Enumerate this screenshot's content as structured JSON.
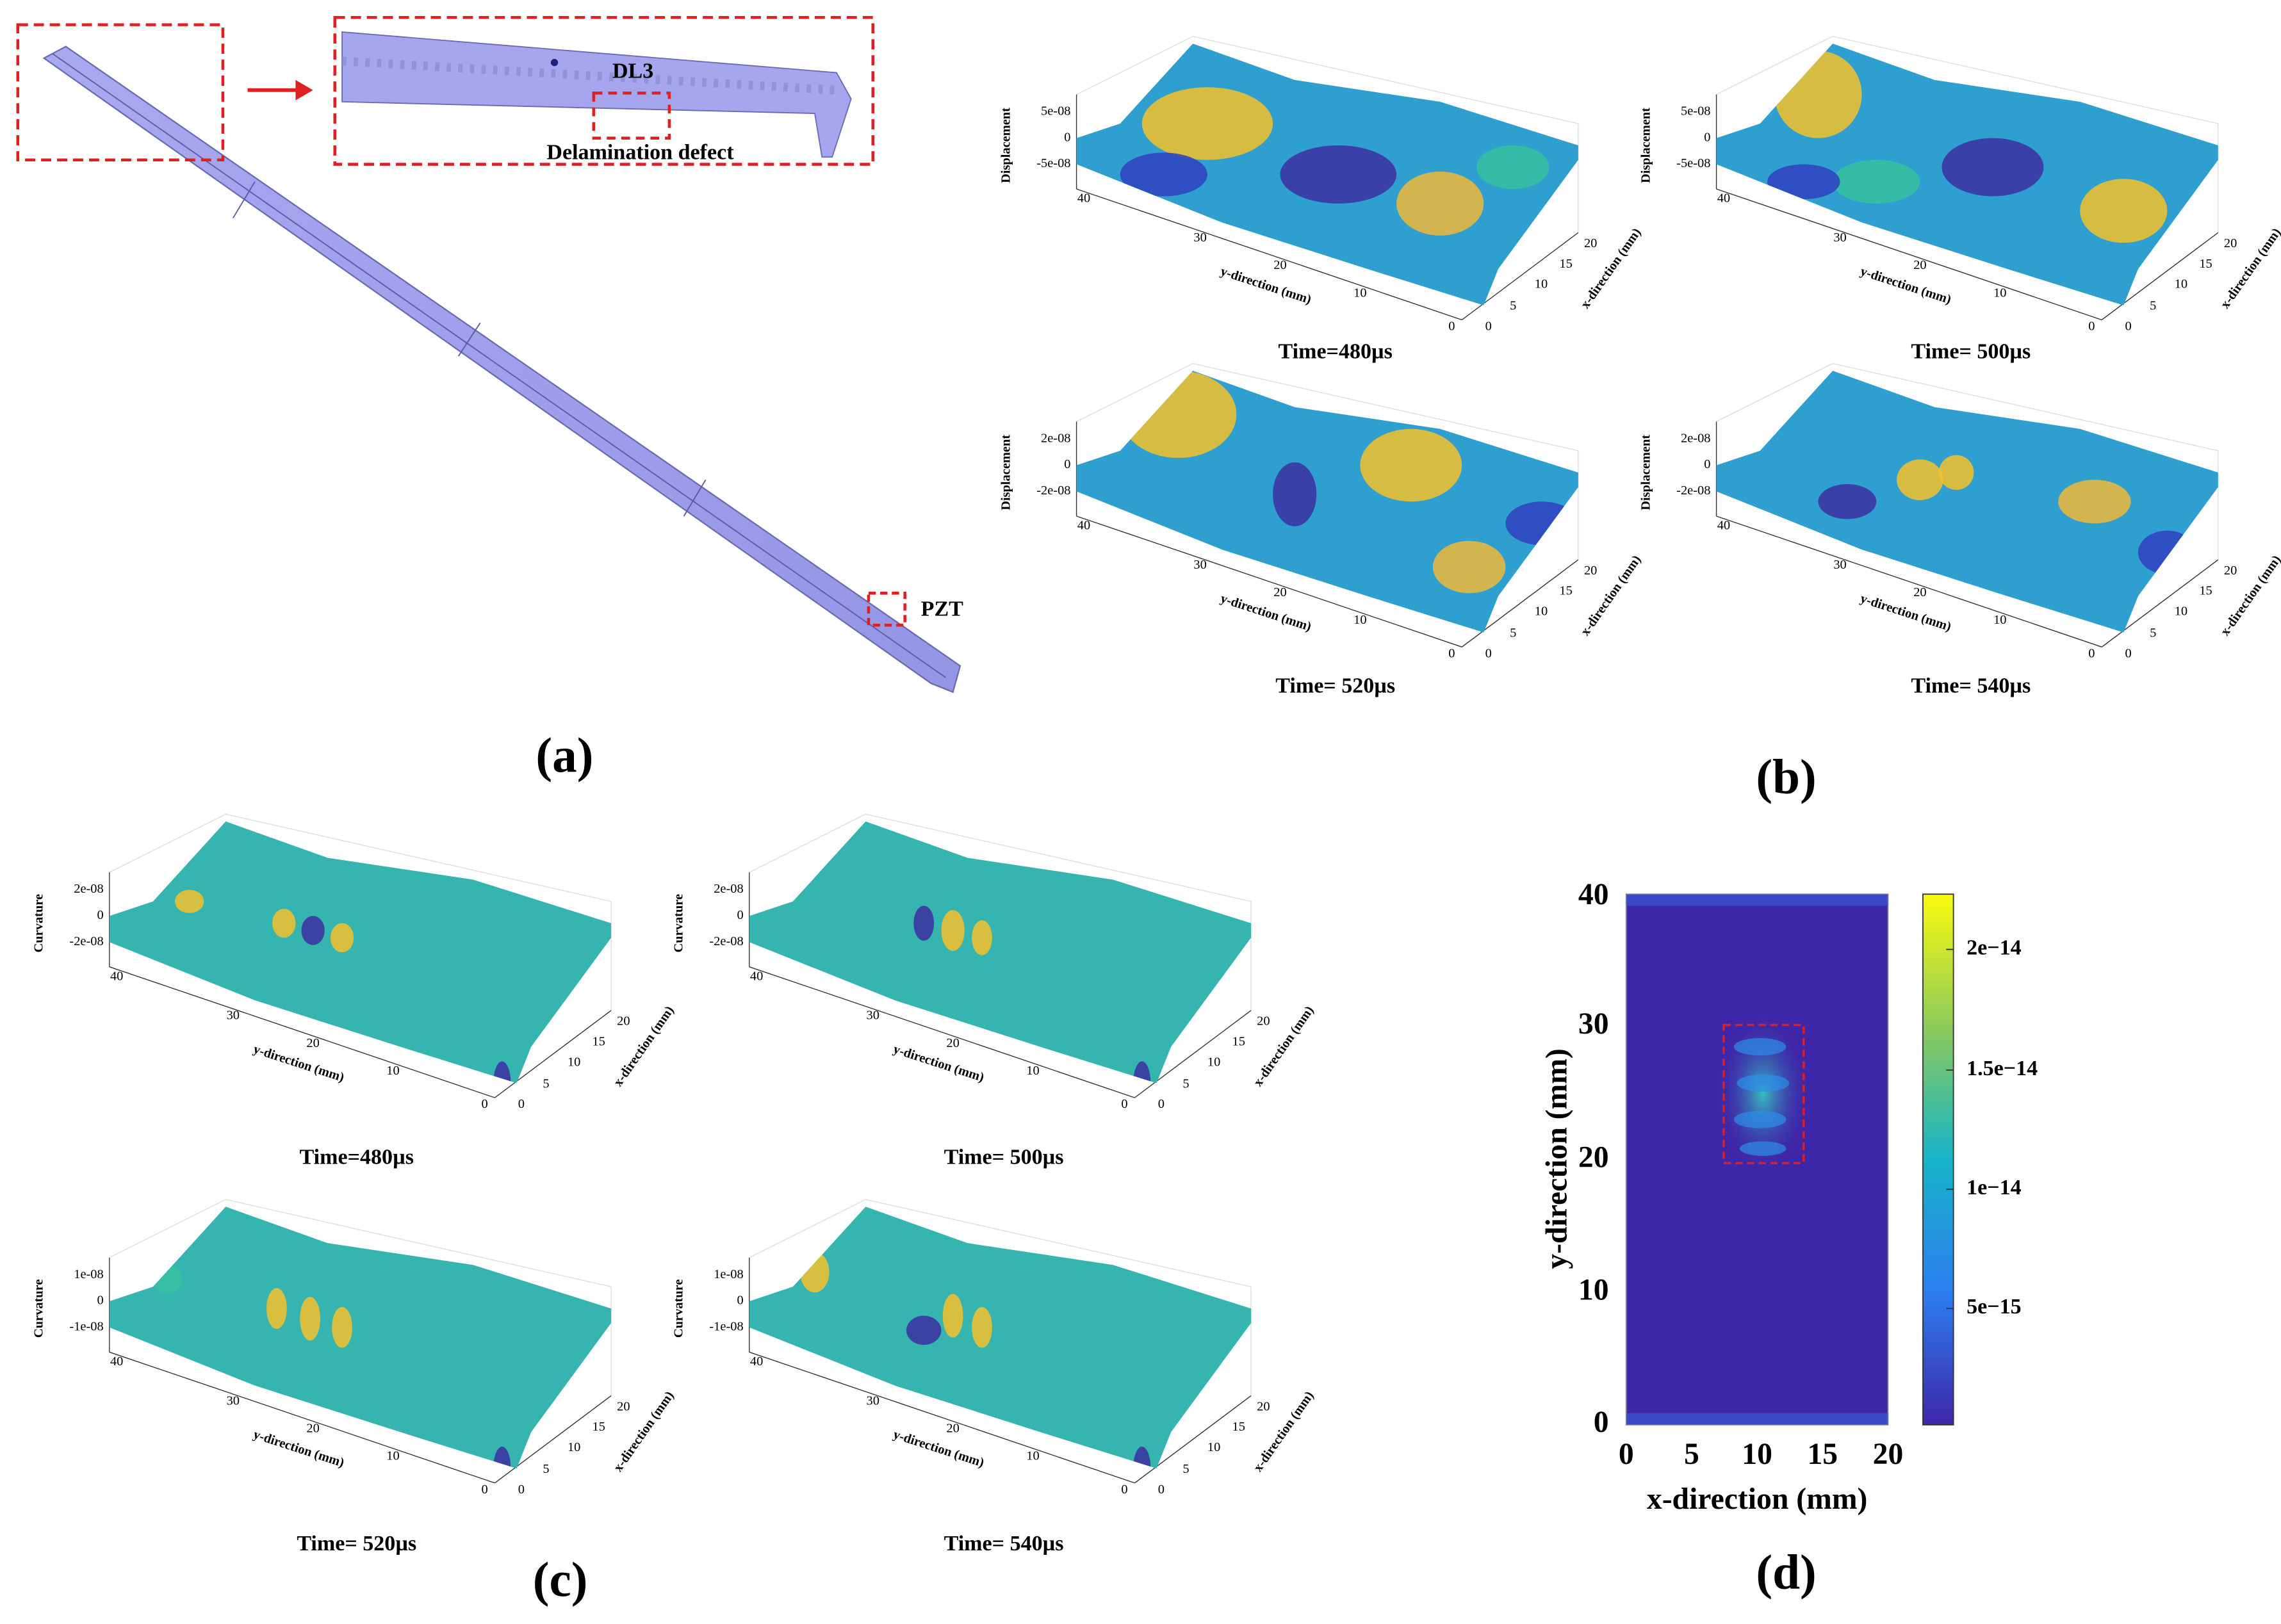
{
  "panel_a": {
    "label": "(a)",
    "annotations": [
      "DL3",
      "Delamination defect",
      "PZT"
    ]
  },
  "panel_b": {
    "label": "(b)",
    "z_label": "Displacement",
    "x_label": "x-direction (mm)",
    "y_label": "y-direction (mm)",
    "yticks": [
      "40",
      "30",
      "20",
      "10",
      "0"
    ],
    "xticks": [
      "0",
      "5",
      "10",
      "15",
      "20"
    ],
    "plots": [
      {
        "caption": "Time=480µs",
        "zticks": [
          "5e-08",
          "0",
          "-5e-08"
        ]
      },
      {
        "caption": "Time= 500µs",
        "zticks": [
          "5e-08",
          "0",
          "-5e-08"
        ]
      },
      {
        "caption": "Time= 520µs",
        "zticks": [
          "2e-08",
          "0",
          "-2e-08"
        ]
      },
      {
        "caption": "Time= 540µs",
        "zticks": [
          "2e-08",
          "0",
          "-2e-08"
        ]
      }
    ]
  },
  "panel_c": {
    "label": "(c)",
    "z_label": "Curvature",
    "x_label": "x-direction (mm)",
    "y_label": "y-direction (mm)",
    "yticks": [
      "40",
      "30",
      "20",
      "10",
      "0"
    ],
    "xticks": [
      "0",
      "5",
      "10",
      "15",
      "20"
    ],
    "plots": [
      {
        "caption": "Time=480µs",
        "zticks": [
          "2e-08",
          "0",
          "-2e-08"
        ]
      },
      {
        "caption": "Time= 500µs",
        "zticks": [
          "2e-08",
          "0",
          "-2e-08"
        ]
      },
      {
        "caption": "Time= 520µs",
        "zticks": [
          "1e-08",
          "0",
          "-1e-08"
        ]
      },
      {
        "caption": "Time= 540µs",
        "zticks": [
          "1e-08",
          "0",
          "-1e-08"
        ]
      }
    ]
  },
  "panel_d": {
    "label": "(d)",
    "x_label": "x-direction (mm)",
    "y_label": "y-direction (mm)",
    "xticks": [
      "0",
      "5",
      "10",
      "15",
      "20"
    ],
    "yticks": [
      "0",
      "10",
      "20",
      "30",
      "40"
    ],
    "colorbar_ticks": [
      "5e−15",
      "1e−14",
      "1.5e−14",
      "2e−14"
    ]
  }
}
